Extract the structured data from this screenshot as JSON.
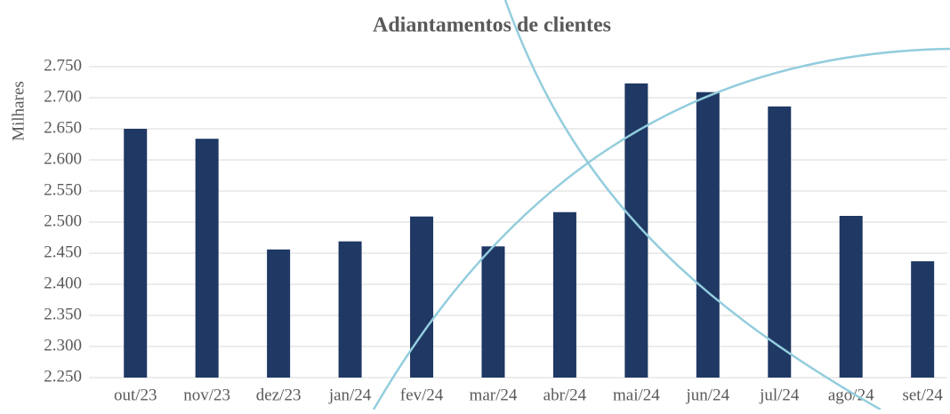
{
  "chart_data": {
    "type": "bar",
    "title": "Adiantamentos de clientes",
    "y_label": "Milhares",
    "categories": [
      "out/23",
      "nov/23",
      "dez/23",
      "jan/24",
      "fev/24",
      "mar/24",
      "abr/24",
      "mai/24",
      "jun/24",
      "jul/24",
      "ago/24",
      "set/24"
    ],
    "values": [
      2650,
      2634,
      2456,
      2469,
      2509,
      2461,
      2516,
      2723,
      2709,
      2686,
      2510,
      2437
    ],
    "color": "#1f3864",
    "ylim": [
      2250,
      2750
    ],
    "yticks": [
      {
        "value": 2250,
        "label": "2.250"
      },
      {
        "value": 2300,
        "label": "2.300"
      },
      {
        "value": 2350,
        "label": "2.350"
      },
      {
        "value": 2400,
        "label": "2.400"
      },
      {
        "value": 2450,
        "label": "2.450"
      },
      {
        "value": 2500,
        "label": "2.500"
      },
      {
        "value": 2550,
        "label": "2.550"
      },
      {
        "value": 2600,
        "label": "2.600"
      },
      {
        "value": 2650,
        "label": "2.650"
      },
      {
        "value": 2700,
        "label": "2.700"
      },
      {
        "value": 2750,
        "label": "2.750"
      }
    ],
    "grid": true
  }
}
